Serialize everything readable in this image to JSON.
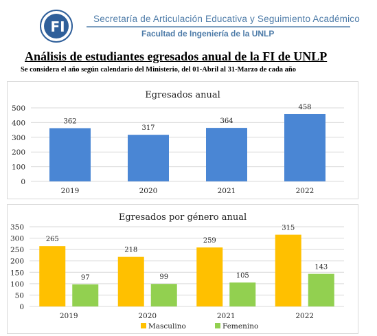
{
  "header": {
    "organization": "Secretaría de Articulación Educativa y Seguimiento Académico",
    "faculty": "Facultad de Ingeniería de la UNLP",
    "logo_text": "FI"
  },
  "report": {
    "title": "Análisis de estudiantes egresados anual de la FI de UNLP",
    "subtitle": "Se considera el año según calendario del Ministerio, del 01-Abril al 31-Marzo de cada año"
  },
  "colors": {
    "total": "#4a86d4",
    "masculino": "#ffc000",
    "femenino": "#92d050",
    "grid": "#d9d9d9"
  },
  "chart_data": [
    {
      "type": "bar",
      "title": "Egresados anual",
      "categories": [
        "2019",
        "2020",
        "2021",
        "2022"
      ],
      "values": [
        362,
        317,
        364,
        458
      ],
      "yticks": [
        0,
        100,
        200,
        300,
        400,
        500
      ],
      "ylim": [
        0,
        500
      ],
      "legend": "none",
      "grid": true
    },
    {
      "type": "bar",
      "title": "Egresados por género anual",
      "categories": [
        "2019",
        "2020",
        "2021",
        "2022"
      ],
      "series": [
        {
          "name": "Masculino",
          "values": [
            265,
            218,
            259,
            315
          ]
        },
        {
          "name": "Femenino",
          "values": [
            97,
            99,
            105,
            143
          ]
        }
      ],
      "yticks": [
        0,
        50,
        100,
        150,
        200,
        250,
        300,
        350
      ],
      "ylim": [
        0,
        350
      ],
      "legend": "bottom",
      "grid": true
    }
  ]
}
